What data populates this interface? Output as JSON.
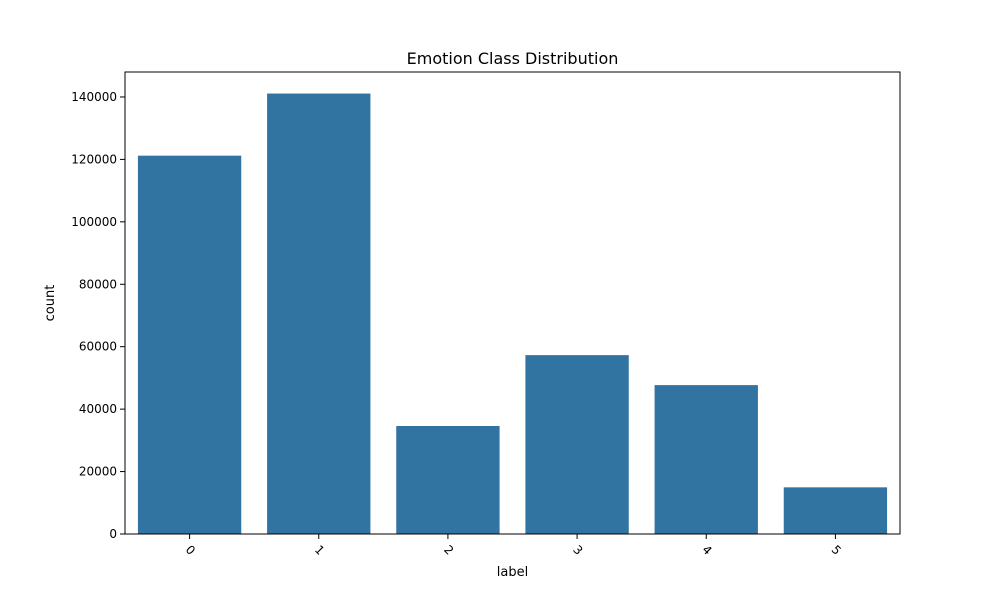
{
  "chart_data": {
    "type": "bar",
    "title": "Emotion Class Distribution",
    "xlabel": "label",
    "ylabel": "count",
    "categories": [
      "0",
      "1",
      "2",
      "3",
      "4",
      "5"
    ],
    "values": [
      121200,
      141100,
      34600,
      57300,
      47700,
      14950
    ],
    "ylim": [
      0,
      148000
    ],
    "yticks": [
      0,
      20000,
      40000,
      60000,
      80000,
      100000,
      120000,
      140000
    ],
    "ytick_labels": [
      "0",
      "20000",
      "40000",
      "60000",
      "80000",
      "100000",
      "120000",
      "140000"
    ],
    "bar_color": "#3274a1",
    "grid": false,
    "legend": "none"
  }
}
